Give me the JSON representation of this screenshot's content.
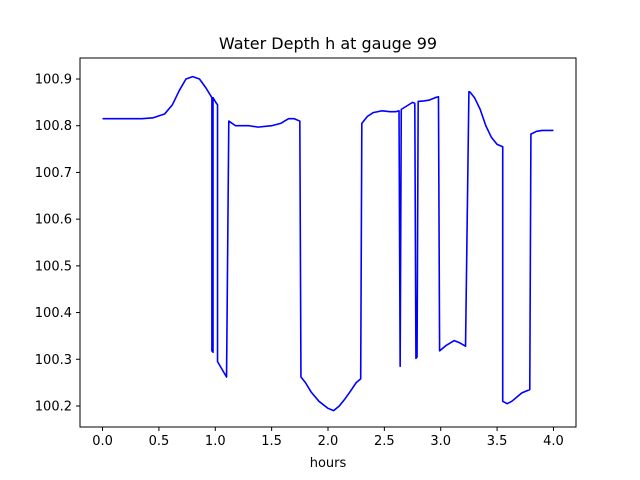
{
  "chart_data": {
    "type": "line",
    "title": "Water Depth h at gauge 99",
    "xlabel": "hours",
    "ylabel": "",
    "xlim": [
      -0.2,
      4.2
    ],
    "ylim": [
      100.155,
      100.945
    ],
    "xticks": [
      0.0,
      0.5,
      1.0,
      1.5,
      2.0,
      2.5,
      3.0,
      3.5,
      4.0
    ],
    "xtick_labels": [
      "0.0",
      "0.5",
      "1.0",
      "1.5",
      "2.0",
      "2.5",
      "3.0",
      "3.5",
      "4.0"
    ],
    "yticks": [
      100.2,
      100.3,
      100.4,
      100.5,
      100.6,
      100.7,
      100.8,
      100.9
    ],
    "ytick_labels": [
      "100.2",
      "100.3",
      "100.4",
      "100.5",
      "100.6",
      "100.7",
      "100.8",
      "100.9"
    ],
    "grid": false,
    "series": [
      {
        "color": "#0000ff",
        "x": [
          0.0,
          0.2,
          0.35,
          0.45,
          0.55,
          0.62,
          0.68,
          0.74,
          0.8,
          0.86,
          0.92,
          0.97,
          0.97,
          0.98,
          0.98,
          1.01,
          1.02,
          1.02,
          1.1,
          1.12,
          1.12,
          1.18,
          1.3,
          1.38,
          1.5,
          1.58,
          1.65,
          1.7,
          1.75,
          1.76,
          1.8,
          1.85,
          1.92,
          2.0,
          2.05,
          2.1,
          2.15,
          2.2,
          2.25,
          2.29,
          2.3,
          2.35,
          2.4,
          2.48,
          2.55,
          2.6,
          2.63,
          2.64,
          2.65,
          2.75,
          2.77,
          2.78,
          2.79,
          2.8,
          2.85,
          2.9,
          2.95,
          2.98,
          2.99,
          3.05,
          3.12,
          3.17,
          3.22,
          3.25,
          3.26,
          3.3,
          3.35,
          3.4,
          3.45,
          3.5,
          3.55,
          3.55,
          3.59,
          3.63,
          3.68,
          3.72,
          3.76,
          3.79,
          3.8,
          3.85,
          3.9,
          3.95,
          4.0
        ],
        "y": [
          100.815,
          100.815,
          100.815,
          100.817,
          100.825,
          100.845,
          100.875,
          100.9,
          100.905,
          100.9,
          100.88,
          100.86,
          100.318,
          100.315,
          100.86,
          100.848,
          100.845,
          100.295,
          100.262,
          100.81,
          100.81,
          100.8,
          100.8,
          100.797,
          100.8,
          100.805,
          100.815,
          100.815,
          100.81,
          100.262,
          100.25,
          100.23,
          100.21,
          100.195,
          100.19,
          100.2,
          100.215,
          100.232,
          100.25,
          100.258,
          100.805,
          100.82,
          100.828,
          100.832,
          100.83,
          100.83,
          100.832,
          100.285,
          100.835,
          100.85,
          100.848,
          100.302,
          100.305,
          100.852,
          100.853,
          100.855,
          100.86,
          100.862,
          100.318,
          100.33,
          100.34,
          100.335,
          100.328,
          100.873,
          100.872,
          100.86,
          100.835,
          100.8,
          100.775,
          100.76,
          100.755,
          100.21,
          100.205,
          100.21,
          100.22,
          100.228,
          100.232,
          100.235,
          100.782,
          100.788,
          100.79,
          100.79,
          100.79
        ]
      }
    ]
  }
}
